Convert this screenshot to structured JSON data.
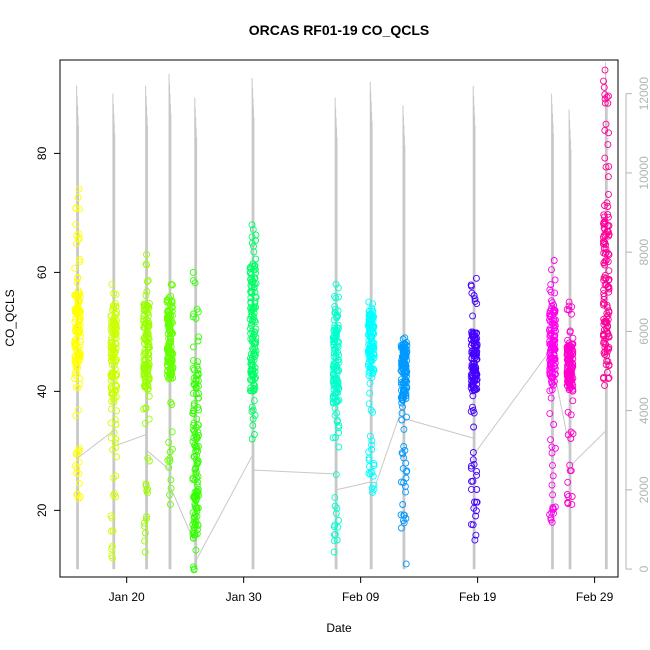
{
  "chart_data": {
    "type": "scatter",
    "title": "ORCAS RF01-19 CO_QCLS",
    "xlabel": "Date",
    "ylabel": "CO_QCLS",
    "x_ticks": [
      {
        "day": 20,
        "label": "Jan 20"
      },
      {
        "day": 30,
        "label": "Jan 30"
      },
      {
        "day": 40,
        "label": "Feb 09"
      },
      {
        "day": 50,
        "label": "Feb 19"
      },
      {
        "day": 60,
        "label": "Feb 29"
      }
    ],
    "xlim": [
      14.3,
      62.0
    ],
    "ylim": [
      8.8,
      95.7
    ],
    "y_ticks": [
      20,
      40,
      60,
      80
    ],
    "y2_ticks": [
      0,
      2000,
      4000,
      6000,
      8000,
      10000,
      12000
    ],
    "y2lim": [
      -200,
      12850
    ],
    "altitude_color": "#c8c8c8",
    "flights": [
      {
        "day": 15.8,
        "color": "#ffff00",
        "co_range": [
          22,
          74
        ],
        "co_core": [
          42,
          57
        ],
        "alt_max": 12200,
        "alt_end": 2800
      },
      {
        "day": 18.9,
        "color": "#ccff00",
        "co_range": [
          12,
          58
        ],
        "co_core": [
          38,
          55
        ],
        "alt_max": 12000,
        "alt_end": 3100
      },
      {
        "day": 21.7,
        "color": "#99ff00",
        "co_range": [
          13,
          63
        ],
        "co_core": [
          40,
          55
        ],
        "alt_max": 12200,
        "alt_end": 3000
      },
      {
        "day": 23.7,
        "color": "#66ff00",
        "co_range": [
          21,
          58
        ],
        "co_core": [
          42,
          56
        ],
        "alt_max": 12500,
        "alt_end": 2100
      },
      {
        "day": 25.9,
        "color": "#33ff00",
        "co_range": [
          10,
          60
        ],
        "co_core": [
          15,
          45
        ],
        "alt_max": 11900,
        "alt_end": 200
      },
      {
        "day": 30.8,
        "color": "#00ff66",
        "co_range": [
          32,
          68
        ],
        "co_core": [
          40,
          62
        ],
        "alt_max": 12400,
        "alt_end": 2500
      },
      {
        "day": 37.9,
        "color": "#00ffcc",
        "co_range": [
          13,
          58
        ],
        "co_core": [
          38,
          54
        ],
        "alt_max": 11900,
        "alt_end": 2000
      },
      {
        "day": 40.9,
        "color": "#00ffff",
        "co_range": [
          23,
          55
        ],
        "co_core": [
          43,
          54
        ],
        "alt_max": 12300,
        "alt_end": 1800
      },
      {
        "day": 43.7,
        "color": "#0099ff",
        "co_range": [
          11,
          49
        ],
        "co_core": [
          38,
          48
        ],
        "alt_max": 11700,
        "alt_end": 3800
      },
      {
        "day": 49.7,
        "color": "#4400ff",
        "co_range": [
          15,
          59
        ],
        "co_core": [
          40,
          50
        ],
        "alt_max": 12200,
        "alt_end": 2900
      },
      {
        "day": 56.4,
        "color": "#ff00ee",
        "co_range": [
          18,
          62
        ],
        "co_core": [
          40,
          54
        ],
        "alt_max": 12000,
        "alt_end": 5200
      },
      {
        "day": 57.9,
        "color": "#ff00cc",
        "co_range": [
          21,
          55
        ],
        "co_core": [
          40,
          48
        ],
        "alt_max": 11600,
        "alt_end": 2600
      },
      {
        "day": 61.0,
        "color": "#ff0099",
        "co_range": [
          41,
          94
        ],
        "co_core": [
          42,
          70
        ],
        "alt_max": 12800,
        "alt_end": 3100
      }
    ]
  }
}
